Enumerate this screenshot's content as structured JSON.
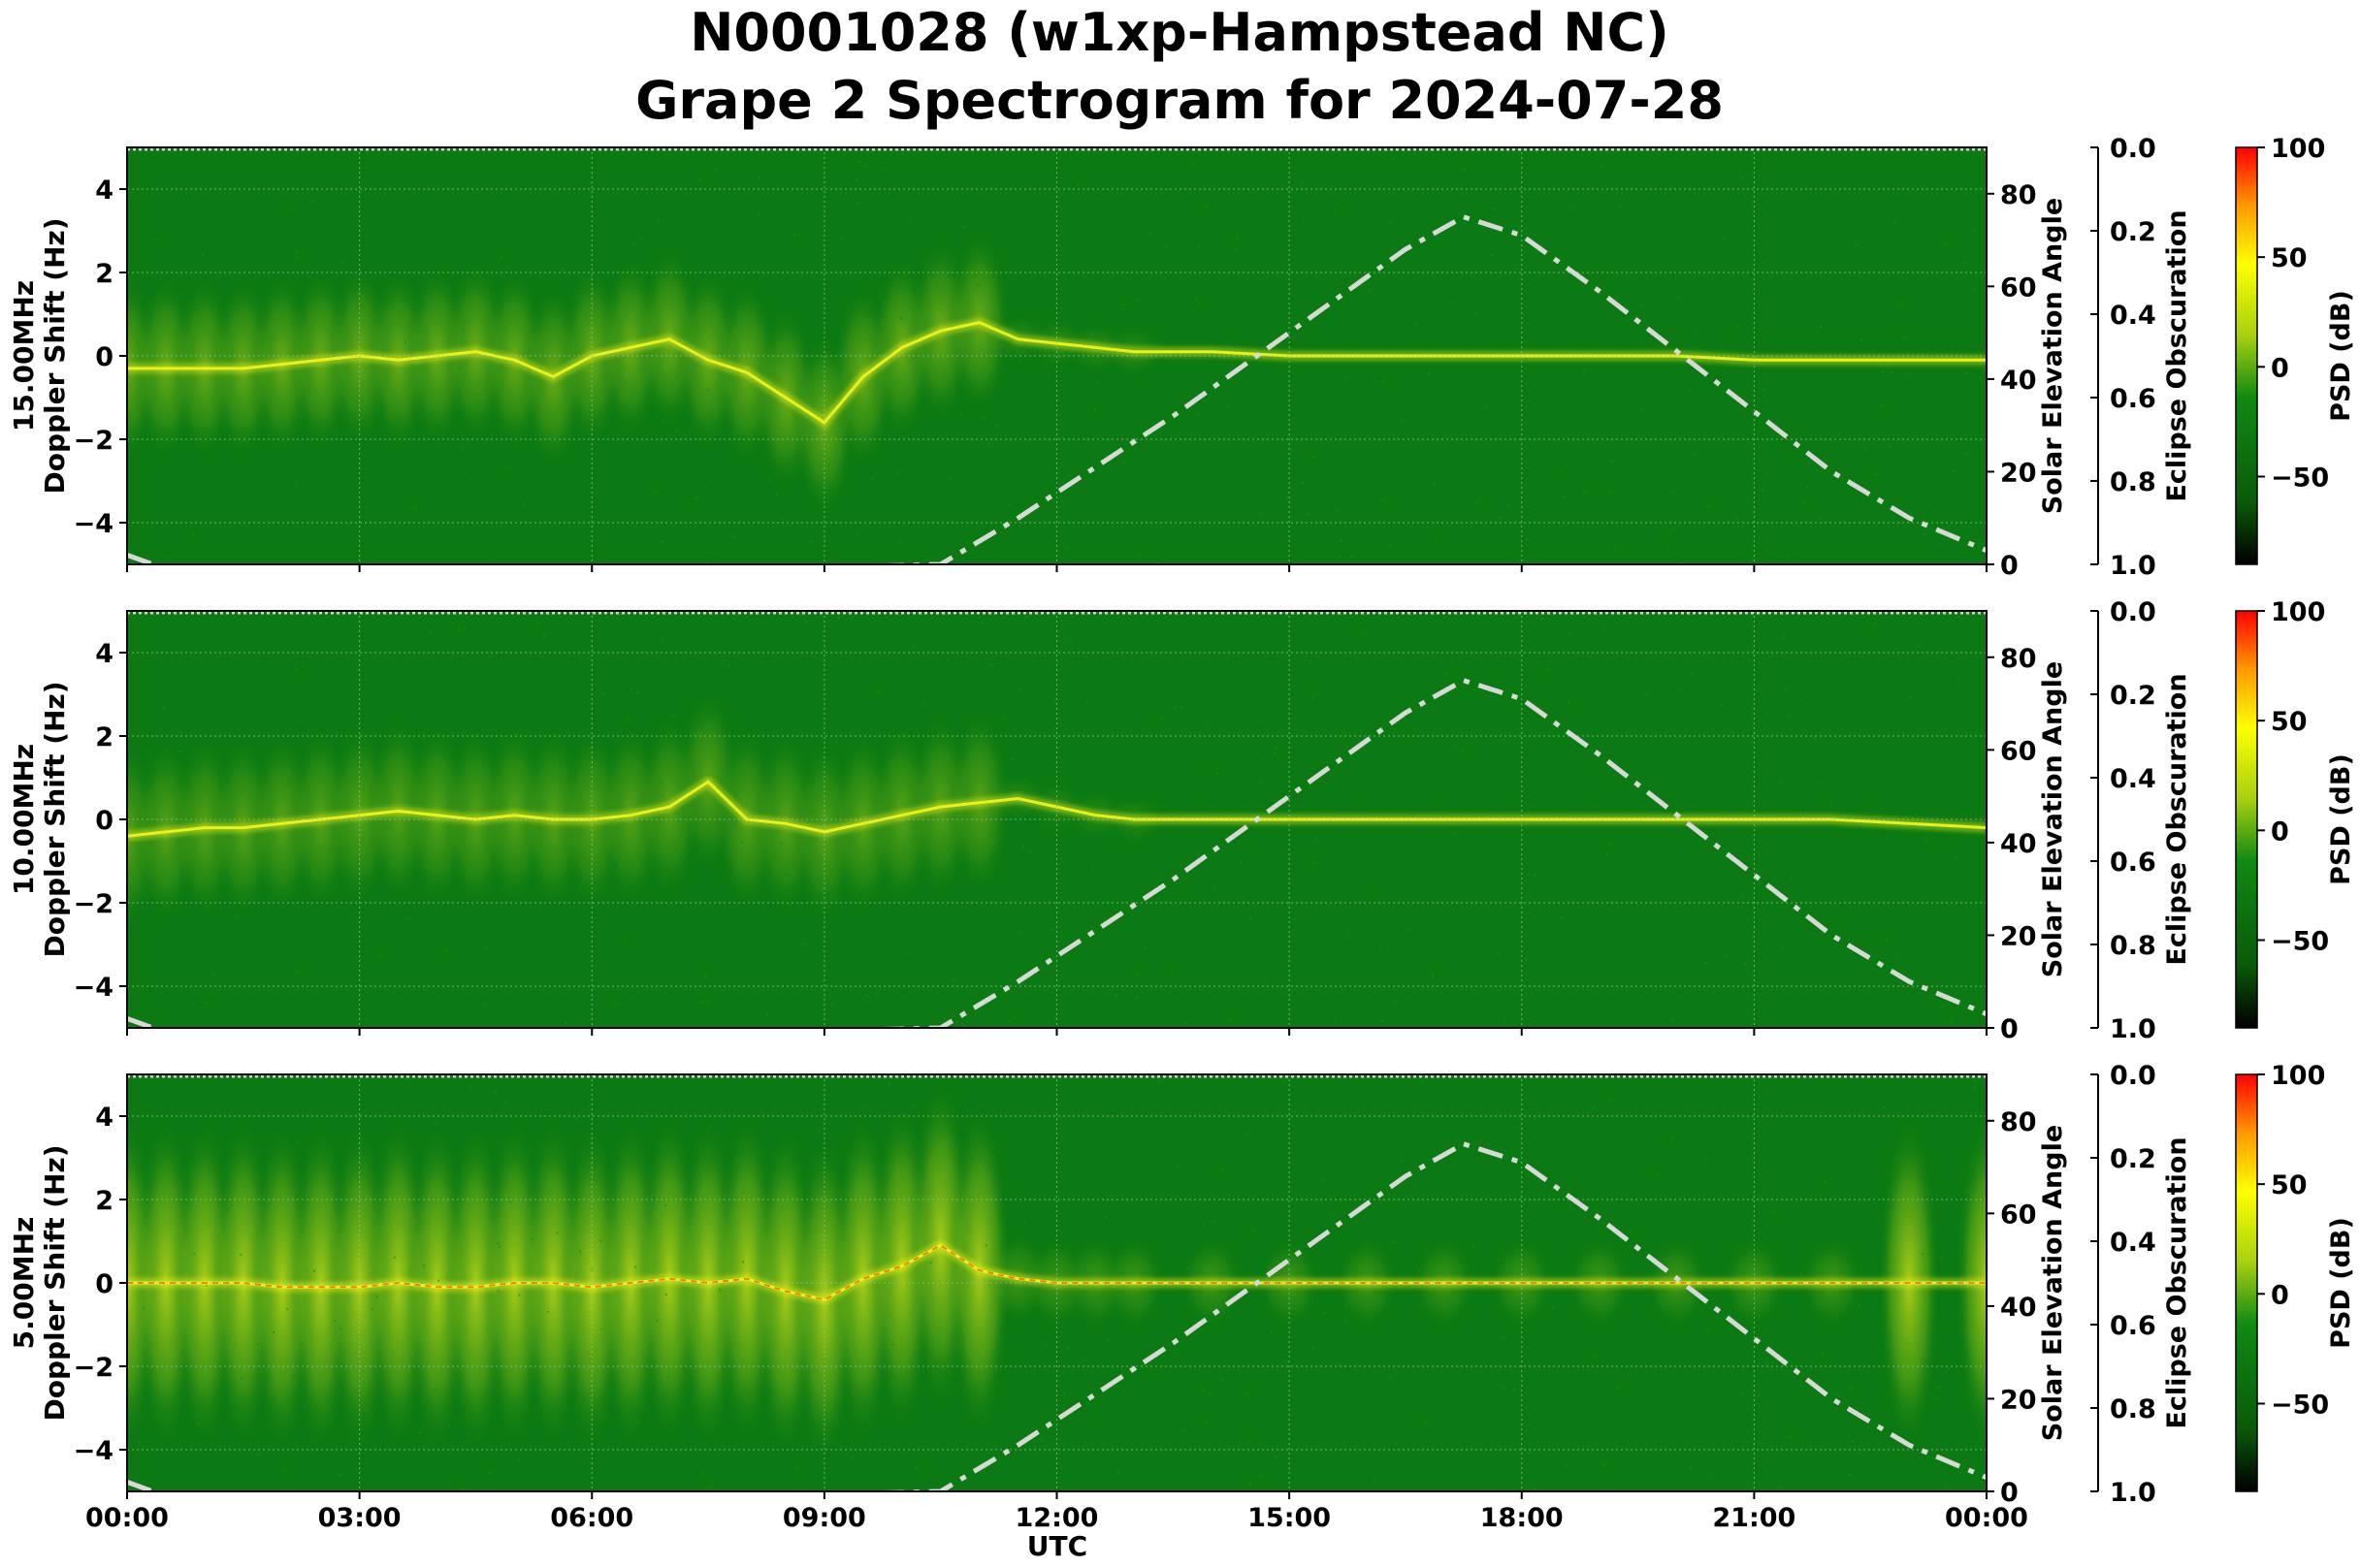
{
  "title_line1": "N0001028 (w1xp-Hampstead NC)",
  "title_line2": "Grape 2 Spectrogram for 2024-07-28",
  "xlabel": "UTC",
  "x_ticks": [
    "00:00",
    "03:00",
    "06:00",
    "09:00",
    "12:00",
    "15:00",
    "18:00",
    "21:00",
    "00:00"
  ],
  "doppler_ticks": [
    "4",
    "2",
    "0",
    "−2",
    "−4"
  ],
  "elevation_ticks": [
    "80",
    "60",
    "40",
    "20",
    "0"
  ],
  "obscuration_ticks": [
    "0.0",
    "0.2",
    "0.4",
    "0.6",
    "0.8",
    "1.0"
  ],
  "psd_ticks": [
    "100",
    "50",
    "0",
    "−50"
  ],
  "right_labels": {
    "elevation": "Solar Elevation Angle",
    "obscuration": "Eclipse Obscuration",
    "psd": "PSD (dB)"
  },
  "colors": {
    "background": "#0b7a12",
    "signal_yellow": "#eef21a",
    "signal_red": "#ff3300",
    "elevation_curve": "#d8d8d8",
    "colorbar": [
      "#000000",
      "#0a5a0a",
      "#0f8a12",
      "#a8d010",
      "#ffff00",
      "#ff9900",
      "#ff0000"
    ]
  },
  "chart_data": [
    {
      "type": "heatmap",
      "frequency_label": "15.00MHz",
      "ylabel": "Doppler Shift (Hz)",
      "xlim": [
        0,
        24
      ],
      "ylim": [
        -5,
        5
      ],
      "elevation_ylim": [
        0,
        90
      ],
      "obscuration_ylim": [
        1.0,
        0.0
      ],
      "psd_clim": [
        -90,
        100
      ],
      "doppler_trace": {
        "x": [
          0.0,
          0.5,
          1.0,
          1.5,
          2.0,
          2.5,
          3.0,
          3.5,
          4.0,
          4.5,
          5.0,
          5.5,
          6.0,
          6.5,
          7.0,
          7.5,
          8.0,
          8.5,
          9.0,
          9.5,
          10.0,
          10.5,
          11.0,
          11.5,
          12.0,
          12.5,
          13.0,
          14.0,
          15.0,
          16.0,
          17.0,
          18.0,
          19.0,
          20.0,
          21.0,
          22.0,
          23.0,
          24.0
        ],
        "y": [
          -0.3,
          -0.3,
          -0.3,
          -0.3,
          -0.2,
          -0.1,
          0.0,
          -0.1,
          0.0,
          0.1,
          -0.1,
          -0.5,
          0.0,
          0.2,
          0.4,
          -0.1,
          -0.4,
          -1.0,
          -1.6,
          -0.5,
          0.2,
          0.6,
          0.8,
          0.4,
          0.3,
          0.2,
          0.1,
          0.1,
          0.0,
          0.0,
          0.0,
          0.0,
          0.0,
          0.0,
          -0.1,
          -0.1,
          -0.1,
          -0.1
        ]
      },
      "signal_strength": 0.55,
      "elevation_curve": {
        "x": [
          0.0,
          1.0,
          10.5,
          11.5,
          12.5,
          13.5,
          14.5,
          15.5,
          16.5,
          17.25,
          18.0,
          19.0,
          20.0,
          21.0,
          22.0,
          23.0,
          24.0
        ],
        "y": [
          2,
          -4,
          0,
          10,
          21,
          32,
          44,
          56,
          68,
          75,
          71,
          59,
          46,
          33,
          20,
          10,
          3
        ]
      }
    },
    {
      "type": "heatmap",
      "frequency_label": "10.00MHz",
      "ylabel": "Doppler Shift (Hz)",
      "xlim": [
        0,
        24
      ],
      "ylim": [
        -5,
        5
      ],
      "elevation_ylim": [
        0,
        90
      ],
      "obscuration_ylim": [
        1.0,
        0.0
      ],
      "psd_clim": [
        -90,
        100
      ],
      "doppler_trace": {
        "x": [
          0.0,
          0.5,
          1.0,
          1.5,
          2.0,
          2.5,
          3.0,
          3.5,
          4.0,
          4.5,
          5.0,
          5.5,
          6.0,
          6.5,
          7.0,
          7.5,
          8.0,
          8.5,
          9.0,
          9.5,
          10.0,
          10.5,
          11.0,
          11.5,
          12.0,
          12.5,
          13.0,
          14.0,
          15.0,
          16.0,
          17.0,
          18.0,
          19.0,
          20.0,
          21.0,
          22.0,
          23.0,
          24.0
        ],
        "y": [
          -0.4,
          -0.3,
          -0.2,
          -0.2,
          -0.1,
          0.0,
          0.1,
          0.2,
          0.1,
          0.0,
          0.1,
          0.0,
          0.0,
          0.1,
          0.3,
          0.9,
          0.0,
          -0.1,
          -0.3,
          -0.1,
          0.1,
          0.3,
          0.4,
          0.5,
          0.3,
          0.1,
          0.0,
          0.0,
          0.0,
          0.0,
          0.0,
          0.0,
          0.0,
          0.0,
          0.0,
          0.0,
          -0.1,
          -0.2
        ]
      },
      "signal_strength": 0.45,
      "elevation_curve": {
        "x": [
          0.0,
          1.0,
          10.5,
          11.5,
          12.5,
          13.5,
          14.5,
          15.5,
          16.5,
          17.25,
          18.0,
          19.0,
          20.0,
          21.0,
          22.0,
          23.0,
          24.0
        ],
        "y": [
          2,
          -4,
          0,
          10,
          21,
          32,
          44,
          56,
          68,
          75,
          71,
          59,
          46,
          33,
          20,
          10,
          3
        ]
      }
    },
    {
      "type": "heatmap",
      "frequency_label": "5.00MHz",
      "ylabel": "Doppler Shift (Hz)",
      "xlim": [
        0,
        24
      ],
      "ylim": [
        -5,
        5
      ],
      "elevation_ylim": [
        0,
        90
      ],
      "obscuration_ylim": [
        1.0,
        0.0
      ],
      "psd_clim": [
        -90,
        100
      ],
      "doppler_trace": {
        "x": [
          0.0,
          0.5,
          1.0,
          1.5,
          2.0,
          2.5,
          3.0,
          3.5,
          4.0,
          4.5,
          5.0,
          5.5,
          6.0,
          6.5,
          7.0,
          7.5,
          8.0,
          8.5,
          9.0,
          9.5,
          10.0,
          10.5,
          11.0,
          11.5,
          12.0,
          12.5,
          13.0,
          14.0,
          15.0,
          16.0,
          17.0,
          18.0,
          19.0,
          20.0,
          21.0,
          22.0,
          23.0,
          24.0
        ],
        "y": [
          0.0,
          0.0,
          0.0,
          0.0,
          -0.1,
          -0.1,
          -0.1,
          0.0,
          -0.1,
          -0.1,
          0.0,
          0.0,
          -0.1,
          0.0,
          0.1,
          0.0,
          0.1,
          -0.2,
          -0.4,
          0.1,
          0.4,
          0.9,
          0.3,
          0.1,
          0.0,
          0.0,
          0.0,
          0.0,
          0.0,
          0.0,
          0.0,
          0.0,
          0.0,
          0.0,
          0.0,
          0.0,
          0.0,
          0.0
        ]
      },
      "signal_strength": 0.9,
      "elevation_curve": {
        "x": [
          0.0,
          1.0,
          10.5,
          11.5,
          12.5,
          13.5,
          14.5,
          15.5,
          16.5,
          17.25,
          18.0,
          19.0,
          20.0,
          21.0,
          22.0,
          23.0,
          24.0
        ],
        "y": [
          2,
          -4,
          0,
          10,
          21,
          32,
          44,
          56,
          68,
          75,
          71,
          59,
          46,
          33,
          20,
          10,
          3
        ]
      }
    }
  ]
}
